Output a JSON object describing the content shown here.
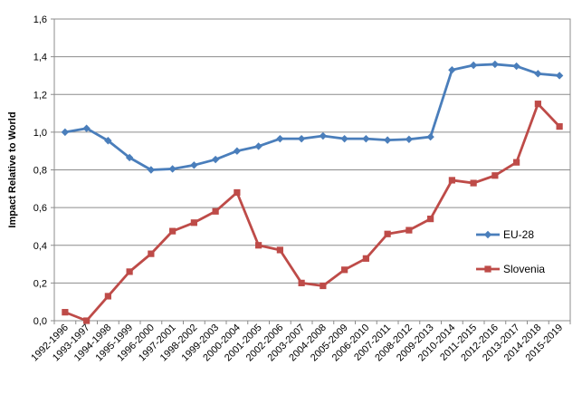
{
  "chart_data": {
    "type": "line",
    "title": "",
    "xlabel": "",
    "ylabel": "Impact Relative to World",
    "ylim": [
      0,
      1.6
    ],
    "yticks": [
      "0,0",
      "0,2",
      "0,4",
      "0,6",
      "0,8",
      "1,0",
      "1,2",
      "1,4",
      "1,6"
    ],
    "grid": true,
    "legend_position": "right",
    "categories": [
      "1992-1996",
      "1993-1997",
      "1994-1998",
      "1995-1999",
      "1996-2000",
      "1997-2001",
      "1998-2002",
      "1999-2003",
      "2000-2004",
      "2001-2005",
      "2002-2006",
      "2003-2007",
      "2004-2008",
      "2005-2009",
      "2006-2010",
      "2007-2011",
      "2008-2012",
      "2009-2013",
      "2010-2014",
      "2011-2015",
      "2012-2016",
      "2013-2017",
      "2014-2018",
      "2015-2019"
    ],
    "series": [
      {
        "name": "EU-28",
        "color": "#4a7ebb",
        "marker": "diamond",
        "values": [
          1.0,
          1.02,
          0.955,
          0.865,
          0.8,
          0.805,
          0.825,
          0.855,
          0.9,
          0.925,
          0.965,
          0.965,
          0.98,
          0.965,
          0.965,
          0.958,
          0.962,
          0.975,
          1.33,
          1.355,
          1.36,
          1.35,
          1.31,
          1.3
        ]
      },
      {
        "name": "Slovenia",
        "color": "#be4b48",
        "marker": "square",
        "values": [
          0.045,
          0.0,
          0.13,
          0.26,
          0.355,
          0.475,
          0.52,
          0.58,
          0.68,
          0.4,
          0.375,
          0.2,
          0.185,
          0.27,
          0.33,
          0.46,
          0.48,
          0.54,
          0.745,
          0.73,
          0.77,
          0.84,
          1.15,
          1.03
        ]
      }
    ]
  }
}
